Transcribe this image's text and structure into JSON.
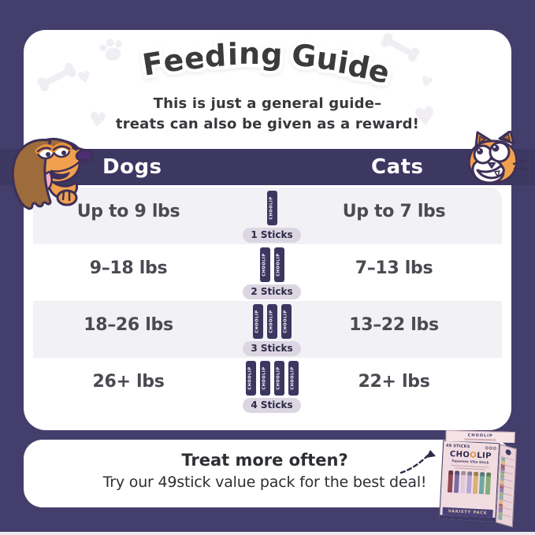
{
  "header": {
    "title": "Feeding Guide",
    "subtitle_line1": "This is just a general guide–",
    "subtitle_line2": "treats can also be given as a reward!"
  },
  "feeding_table": {
    "dogs_header": "Dogs",
    "cats_header": "Cats",
    "stick_brand": "CHOOLIP",
    "rows": [
      {
        "dog_weight": "Up to 9 lbs",
        "cat_weight": "Up to 7 lbs",
        "stick_count": 1,
        "stick_label": "1 Sticks"
      },
      {
        "dog_weight": "9–18 lbs",
        "cat_weight": "7–13 lbs",
        "stick_count": 2,
        "stick_label": "2 Sticks"
      },
      {
        "dog_weight": "18–26 lbs",
        "cat_weight": "13–22 lbs",
        "stick_count": 3,
        "stick_label": "3 Sticks"
      },
      {
        "dog_weight": "26+ lbs",
        "cat_weight": "22+ lbs",
        "stick_count": 4,
        "stick_label": "4 Sticks"
      }
    ]
  },
  "footer": {
    "heading": "Treat more often?",
    "message": "Try our 49stick value pack for the best deal!"
  },
  "product_box": {
    "brand": "CHOOLIP",
    "brand_pre": "CHO",
    "brand_o": "O",
    "brand_post": "LIP",
    "subtitle": "Squeeze Vita Stick",
    "count_label": "49 STICKS",
    "banner": "VARIETY PACK"
  },
  "colors": {
    "background": "#433e6b",
    "band": "#3d3862",
    "stick": "#3b3760",
    "row_alt": "#f2f1f5",
    "pill_bg": "#dbd6e2",
    "pill_text": "#2d2a47",
    "mascot_orange": "#f1a14e",
    "hair_brown": "#9e6b3b",
    "outline_purple": "#3e3058"
  },
  "icons": {
    "decorations": [
      "paw-icon",
      "bone-icon",
      "heart-icon"
    ],
    "mascots": [
      "dog-mascot-icon",
      "cat-mascot-icon"
    ],
    "footer_arrow": "dashed-arrow-icon"
  }
}
